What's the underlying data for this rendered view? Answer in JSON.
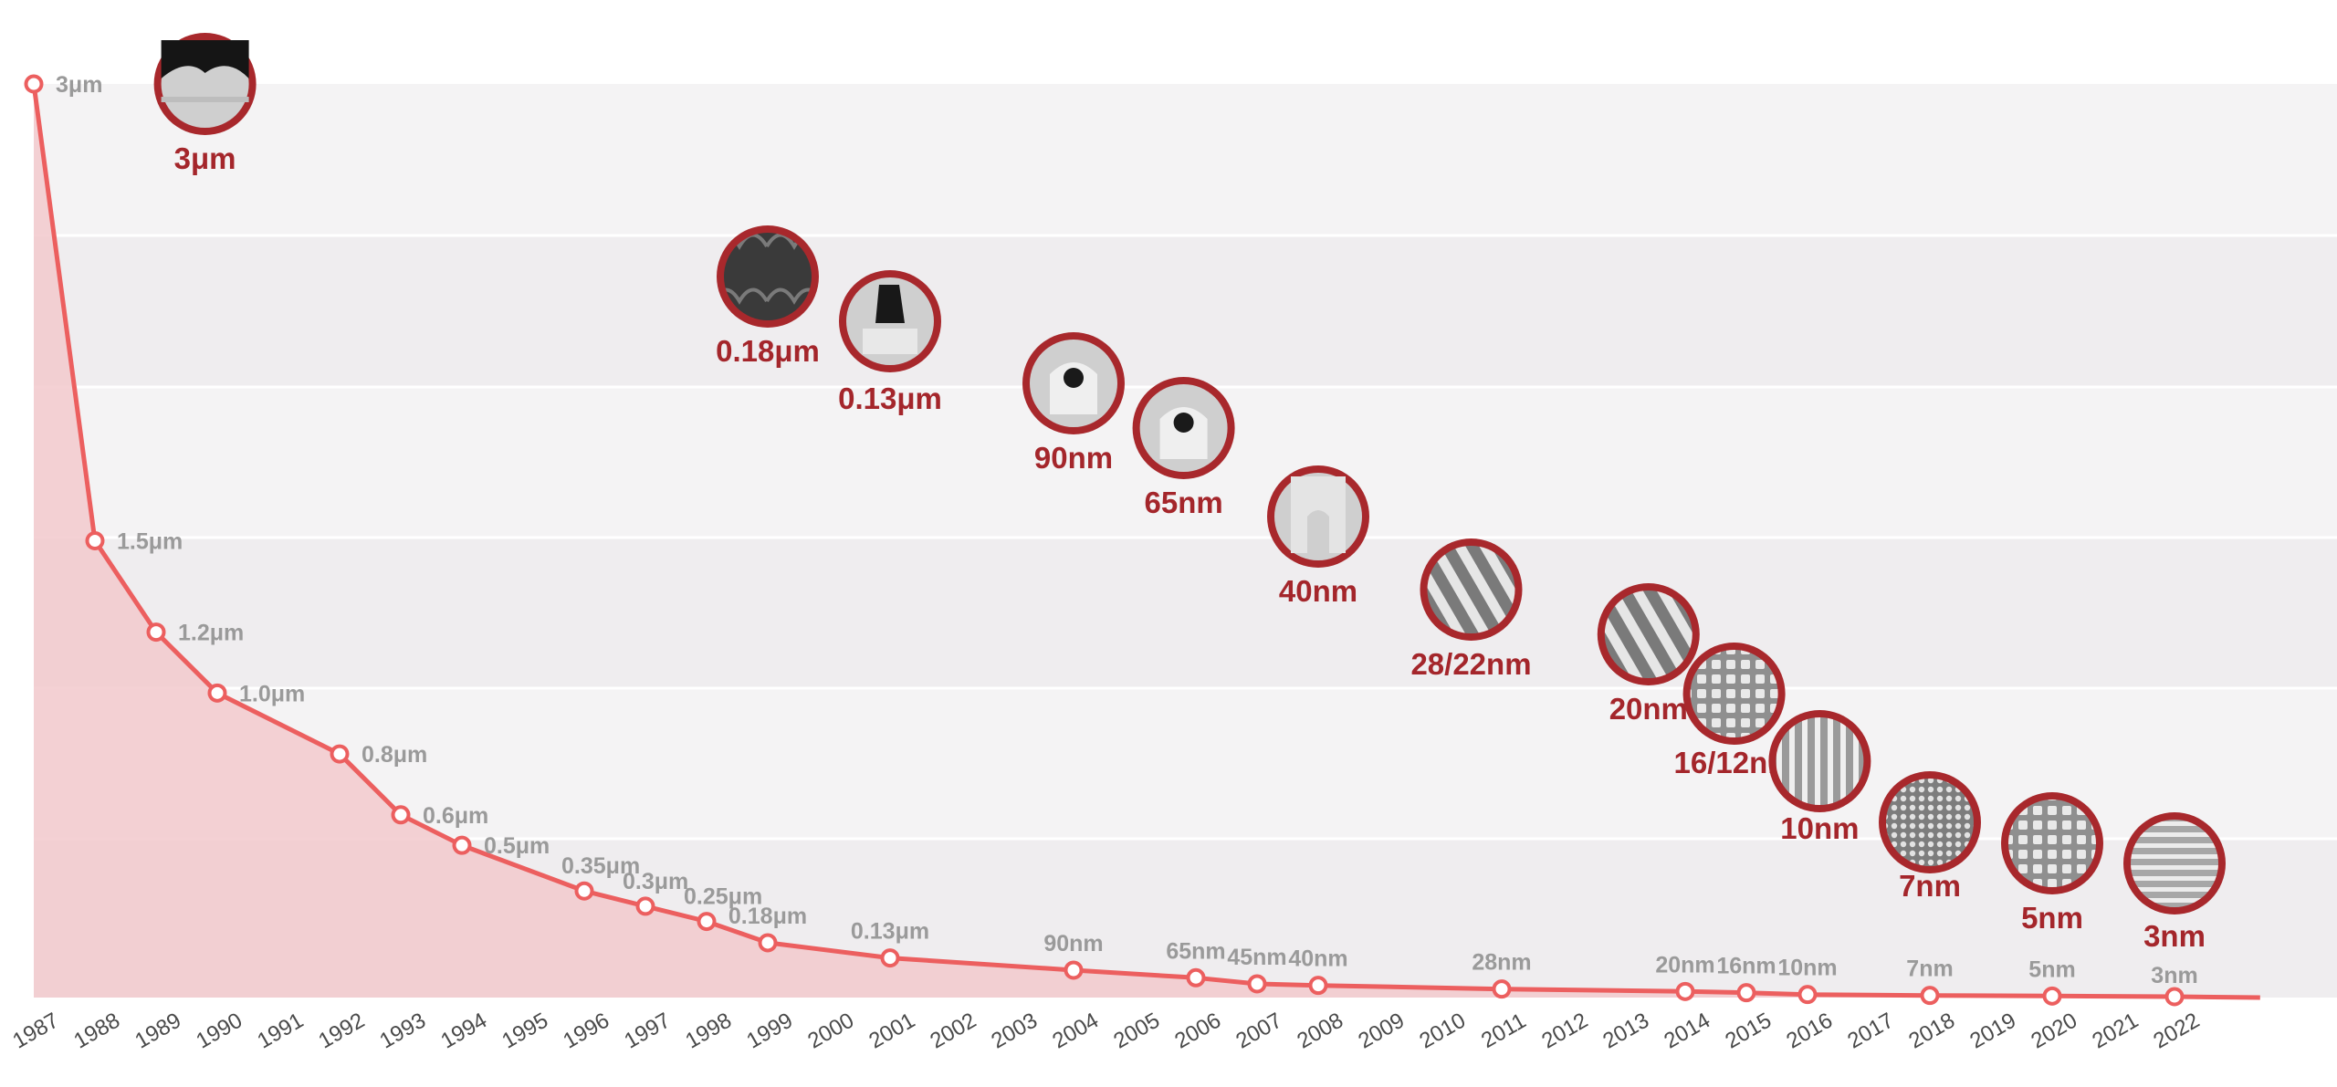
{
  "chart_data": {
    "type": "area",
    "title": "",
    "xlabel": "",
    "ylabel": "",
    "colors": {
      "line": "#ec5f5f",
      "fill": "#f2c9cc",
      "badge_ring": "#a8282c",
      "badge_label": "#a4262b",
      "point_label": "#9a9a9a",
      "band_light": "#f4f3f4",
      "band_dark": "#efedef"
    },
    "years": [
      "1987",
      "1988",
      "1989",
      "1990",
      "1991",
      "1992",
      "1993",
      "1994",
      "1995",
      "1996",
      "1997",
      "1998",
      "1999",
      "2000",
      "2001",
      "2002",
      "2003",
      "2004",
      "2005",
      "2006",
      "2007",
      "2008",
      "2009",
      "2010",
      "2011",
      "2012",
      "2013",
      "2014",
      "2015",
      "2016",
      "2017",
      "2018",
      "2019",
      "2020",
      "2021",
      "2022"
    ],
    "x_end_year": 2023.4,
    "points": [
      {
        "year": 1987,
        "nm": 3000,
        "label": "3μm"
      },
      {
        "year": 1988,
        "nm": 1500,
        "label": "1.5μm"
      },
      {
        "year": 1989,
        "nm": 1200,
        "label": "1.2μm"
      },
      {
        "year": 1990,
        "nm": 1000,
        "label": "1.0μm"
      },
      {
        "year": 1992,
        "nm": 800,
        "label": "0.8μm"
      },
      {
        "year": 1993,
        "nm": 600,
        "label": "0.6μm"
      },
      {
        "year": 1994,
        "nm": 500,
        "label": "0.5μm"
      },
      {
        "year": 1996,
        "nm": 350,
        "label": "0.35μm"
      },
      {
        "year": 1997,
        "nm": 300,
        "label": "0.3μm"
      },
      {
        "year": 1998,
        "nm": 250,
        "label": "0.25μm"
      },
      {
        "year": 1999,
        "nm": 180,
        "label": "0.18μm"
      },
      {
        "year": 2001,
        "nm": 130,
        "label": "0.13μm"
      },
      {
        "year": 2004,
        "nm": 90,
        "label": "90nm"
      },
      {
        "year": 2006,
        "nm": 65,
        "label": "65nm"
      },
      {
        "year": 2007,
        "nm": 45,
        "label": "45nm"
      },
      {
        "year": 2008,
        "nm": 40,
        "label": "40nm"
      },
      {
        "year": 2011,
        "nm": 28,
        "label": "28nm"
      },
      {
        "year": 2014,
        "nm": 20,
        "label": "20nm"
      },
      {
        "year": 2015,
        "nm": 16,
        "label": "16nm"
      },
      {
        "year": 2016,
        "nm": 10,
        "label": "10nm"
      },
      {
        "year": 2018,
        "nm": 7,
        "label": "7nm"
      },
      {
        "year": 2020,
        "nm": 5,
        "label": "5nm"
      },
      {
        "year": 2022,
        "nm": 3,
        "label": "3nm"
      }
    ],
    "process_nodes": [
      {
        "label": "3μm",
        "year": 1989.8,
        "style": "cap"
      },
      {
        "label": "0.18μm",
        "year": 1999,
        "style": "rows"
      },
      {
        "label": "0.13μm",
        "year": 2001,
        "style": "via"
      },
      {
        "label": "90nm",
        "year": 2004,
        "style": "gate"
      },
      {
        "label": "65nm",
        "year": 2005.8,
        "style": "gate"
      },
      {
        "label": "40nm",
        "year": 2008,
        "style": "trench"
      },
      {
        "label": "28/22nm",
        "year": 2010.5,
        "style": "fins"
      },
      {
        "label": "20nm",
        "year": 2013.4,
        "style": "fins"
      },
      {
        "label": "16/12nm",
        "year": 2014.8,
        "style": "grid"
      },
      {
        "label": "10nm",
        "year": 2016.2,
        "style": "stripes"
      },
      {
        "label": "7nm",
        "year": 2018,
        "style": "mesh"
      },
      {
        "label": "5nm",
        "year": 2020,
        "style": "grid"
      },
      {
        "label": "3nm",
        "year": 2022,
        "style": "hlines"
      }
    ]
  }
}
